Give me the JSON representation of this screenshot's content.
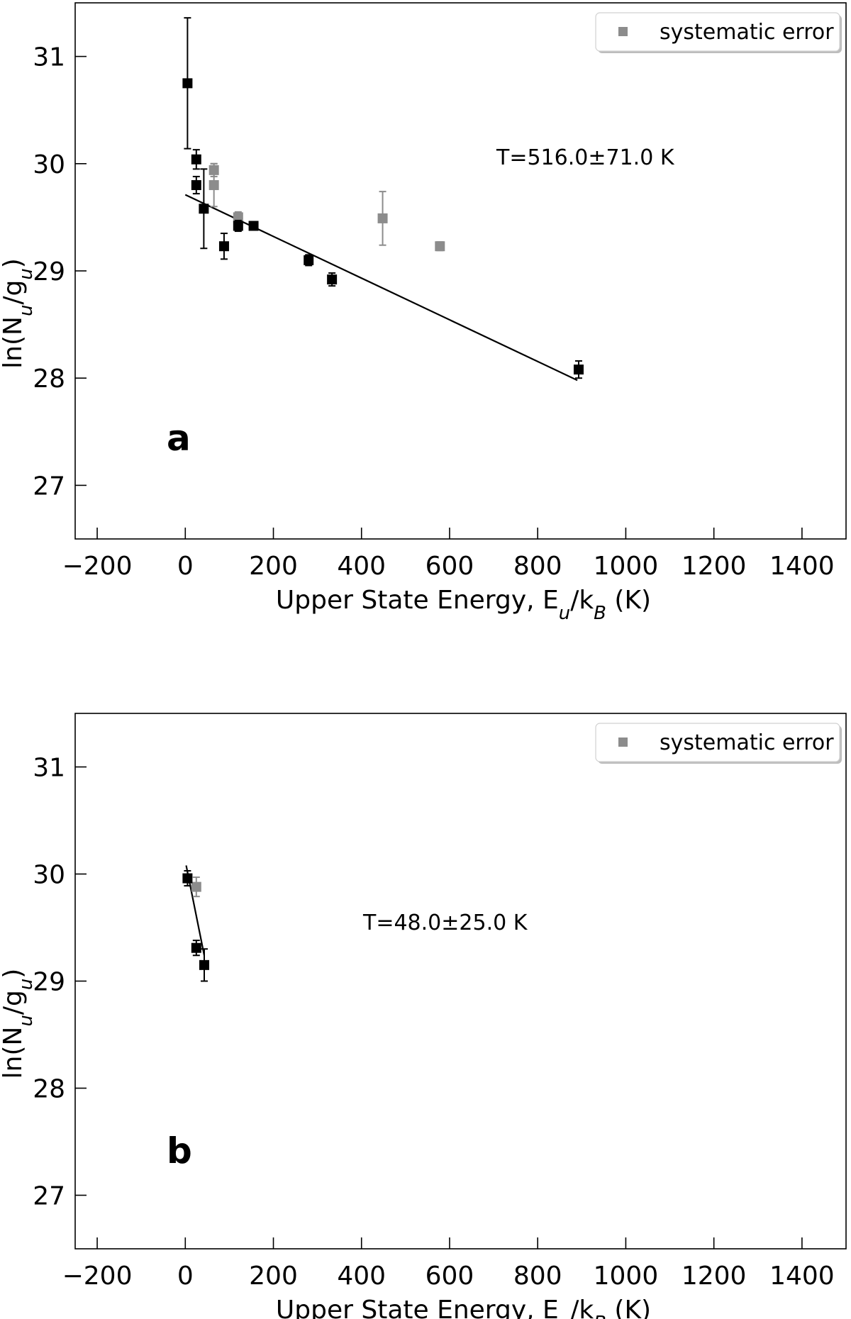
{
  "chart_data": [
    {
      "type": "scatter",
      "panel_label": "a",
      "xlabel": "Upper State Energy, E_u/k_B (K)",
      "ylabel": "ln(N_u/g_u)",
      "xlim": [
        -250,
        1500
      ],
      "ylim": [
        26.5,
        31.5
      ],
      "xticks": [
        -200,
        0,
        200,
        400,
        600,
        800,
        1000,
        1200,
        1400
      ],
      "yticks": [
        27,
        28,
        29,
        30,
        31
      ],
      "annotation": "T=516.0±71.0 K",
      "legend": {
        "label": "systematic error",
        "placement": "top-right",
        "marker_color": "#8c8c8c"
      },
      "fit_line": {
        "x": [
          0,
          890
        ],
        "y": [
          29.71,
          27.98
        ]
      },
      "series": [
        {
          "name": "",
          "color": "#000000",
          "points": [
            {
              "x": 5,
              "y": 30.75,
              "err": 0.61
            },
            {
              "x": 25,
              "y": 30.04,
              "err": 0.09
            },
            {
              "x": 25,
              "y": 29.8,
              "err": 0.08
            },
            {
              "x": 42,
              "y": 29.58,
              "err": 0.37
            },
            {
              "x": 88,
              "y": 29.23,
              "err": 0.12
            },
            {
              "x": 120,
              "y": 29.42,
              "err": 0.05
            },
            {
              "x": 155,
              "y": 29.42,
              "err": 0.03
            },
            {
              "x": 280,
              "y": 29.1,
              "err": 0.05
            },
            {
              "x": 333,
              "y": 28.92,
              "err": 0.06
            },
            {
              "x": 893,
              "y": 28.08,
              "err": 0.08
            }
          ]
        },
        {
          "name": "systematic error",
          "color": "#8c8c8c",
          "points": [
            {
              "x": 65,
              "y": 29.8,
              "err": 0.2
            },
            {
              "x": 65,
              "y": 29.94,
              "err": 0.06
            },
            {
              "x": 120,
              "y": 29.5,
              "err": 0.05
            },
            {
              "x": 448,
              "y": 29.49,
              "err": 0.25
            },
            {
              "x": 578,
              "y": 29.23,
              "err": 0.04
            }
          ]
        }
      ]
    },
    {
      "type": "scatter",
      "panel_label": "b",
      "xlabel": "Upper State Energy, E_u/k_B (K)",
      "ylabel": "ln(N_u/g_u)",
      "xlim": [
        -250,
        1500
      ],
      "ylim": [
        26.5,
        31.5
      ],
      "xticks": [
        -200,
        0,
        200,
        400,
        600,
        800,
        1000,
        1200,
        1400
      ],
      "yticks": [
        27,
        28,
        29,
        30,
        31
      ],
      "annotation": "T=48.0±25.0 K",
      "legend": {
        "label": "systematic error",
        "placement": "top-right",
        "marker_color": "#8c8c8c"
      },
      "fit_line": {
        "x": [
          2,
          43
        ],
        "y": [
          30.08,
          29.24
        ]
      },
      "series": [
        {
          "name": "",
          "color": "#000000",
          "points": [
            {
              "x": 5,
              "y": 29.96,
              "err": 0.07
            },
            {
              "x": 25,
              "y": 29.31,
              "err": 0.07
            },
            {
              "x": 43,
              "y": 29.15,
              "err": 0.15
            }
          ]
        },
        {
          "name": "systematic error",
          "color": "#8c8c8c",
          "points": [
            {
              "x": 25,
              "y": 29.88,
              "err": 0.09
            }
          ]
        }
      ]
    }
  ]
}
